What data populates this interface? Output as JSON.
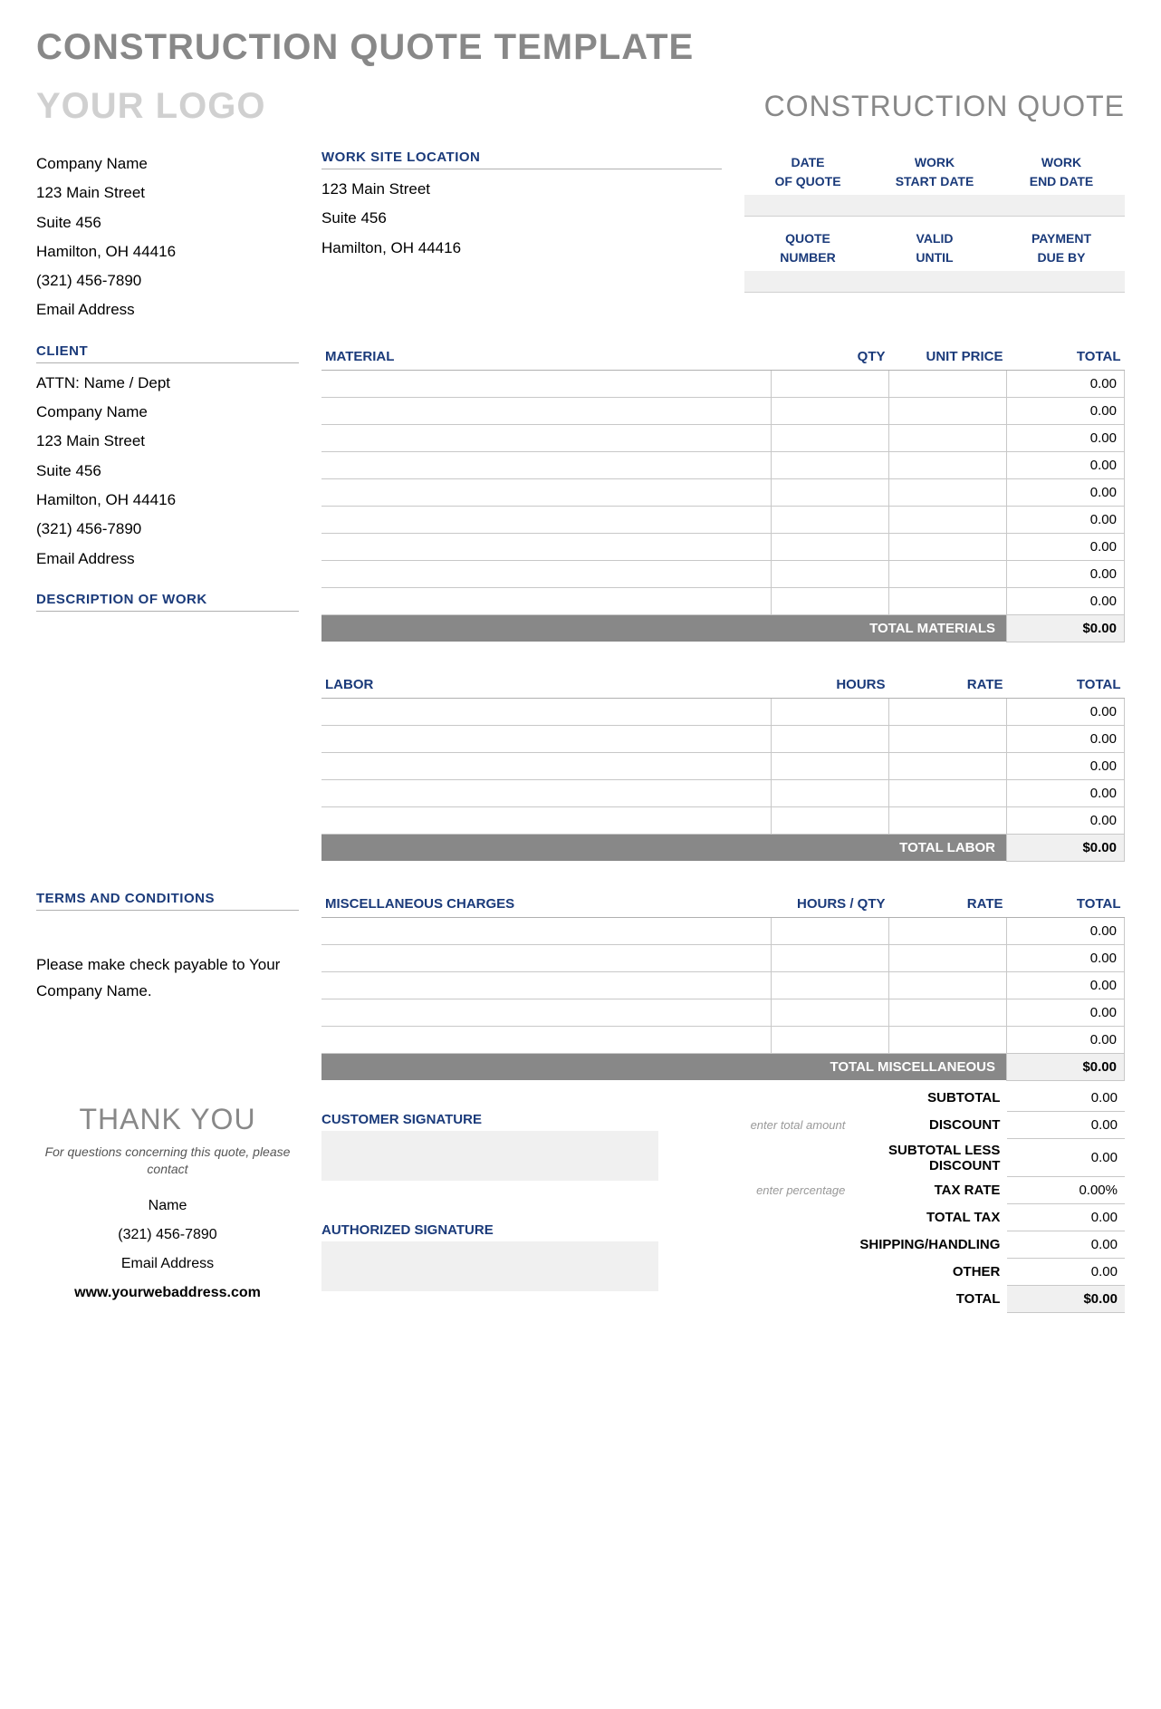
{
  "page_title": "CONSTRUCTION QUOTE TEMPLATE",
  "logo_text": "YOUR LOGO",
  "doc_type": "CONSTRUCTION QUOTE",
  "colors": {
    "heading_gray": "#888888",
    "logo_gray": "#d0d0d0",
    "label_navy": "#1a3a7a",
    "row_border": "#c8c8c8",
    "total_bar_bg": "#888888",
    "shade_bg": "#f0f0f0"
  },
  "company": {
    "name": "Company Name",
    "street": "123 Main Street",
    "suite": "Suite 456",
    "city": "Hamilton, OH  44416",
    "phone": "(321) 456-7890",
    "email": "Email Address"
  },
  "worksite": {
    "label": "WORK SITE LOCATION",
    "street": "123 Main Street",
    "suite": "Suite 456",
    "city": "Hamilton, OH  44416"
  },
  "meta": {
    "row1": [
      {
        "line1": "DATE",
        "line2": "OF QUOTE",
        "value": ""
      },
      {
        "line1": "WORK",
        "line2": "START DATE",
        "value": ""
      },
      {
        "line1": "WORK",
        "line2": "END DATE",
        "value": ""
      }
    ],
    "row2": [
      {
        "line1": "QUOTE",
        "line2": "NUMBER",
        "value": ""
      },
      {
        "line1": "VALID",
        "line2": "UNTIL",
        "value": ""
      },
      {
        "line1": "PAYMENT",
        "line2": "DUE BY",
        "value": ""
      }
    ]
  },
  "client": {
    "label": "CLIENT",
    "attn": "ATTN: Name / Dept",
    "name": "Company Name",
    "street": "123 Main Street",
    "suite": "Suite 456",
    "city": "Hamilton, OH  44416",
    "phone": "(321) 456-7890",
    "email": "Email Address"
  },
  "description_label": "DESCRIPTION OF WORK",
  "material": {
    "headers": [
      "MATERIAL",
      "QTY",
      "UNIT PRICE",
      "TOTAL"
    ],
    "rows": [
      {
        "desc": "",
        "qty": "",
        "price": "",
        "total": "0.00"
      },
      {
        "desc": "",
        "qty": "",
        "price": "",
        "total": "0.00"
      },
      {
        "desc": "",
        "qty": "",
        "price": "",
        "total": "0.00"
      },
      {
        "desc": "",
        "qty": "",
        "price": "",
        "total": "0.00"
      },
      {
        "desc": "",
        "qty": "",
        "price": "",
        "total": "0.00"
      },
      {
        "desc": "",
        "qty": "",
        "price": "",
        "total": "0.00"
      },
      {
        "desc": "",
        "qty": "",
        "price": "",
        "total": "0.00"
      },
      {
        "desc": "",
        "qty": "",
        "price": "",
        "total": "0.00"
      },
      {
        "desc": "",
        "qty": "",
        "price": "",
        "total": "0.00"
      }
    ],
    "total_label": "TOTAL MATERIALS",
    "total_value": "$0.00"
  },
  "labor": {
    "headers": [
      "LABOR",
      "HOURS",
      "RATE",
      "TOTAL"
    ],
    "rows": [
      {
        "desc": "",
        "qty": "",
        "price": "",
        "total": "0.00"
      },
      {
        "desc": "",
        "qty": "",
        "price": "",
        "total": "0.00"
      },
      {
        "desc": "",
        "qty": "",
        "price": "",
        "total": "0.00"
      },
      {
        "desc": "",
        "qty": "",
        "price": "",
        "total": "0.00"
      },
      {
        "desc": "",
        "qty": "",
        "price": "",
        "total": "0.00"
      }
    ],
    "total_label": "TOTAL LABOR",
    "total_value": "$0.00"
  },
  "terms": {
    "label": "TERMS AND CONDITIONS",
    "text": "Please make check payable to Your Company Name."
  },
  "misc": {
    "headers": [
      "MISCELLANEOUS CHARGES",
      "HOURS / QTY",
      "RATE",
      "TOTAL"
    ],
    "rows": [
      {
        "desc": "",
        "qty": "",
        "price": "",
        "total": "0.00"
      },
      {
        "desc": "",
        "qty": "",
        "price": "",
        "total": "0.00"
      },
      {
        "desc": "",
        "qty": "",
        "price": "",
        "total": "0.00"
      },
      {
        "desc": "",
        "qty": "",
        "price": "",
        "total": "0.00"
      },
      {
        "desc": "",
        "qty": "",
        "price": "",
        "total": "0.00"
      }
    ],
    "total_label": "TOTAL MISCELLANEOUS",
    "total_value": "$0.00"
  },
  "summary": {
    "subtotal": {
      "label": "SUBTOTAL",
      "hint": "",
      "value": "0.00"
    },
    "discount": {
      "label": "DISCOUNT",
      "hint": "enter total amount",
      "value": "0.00"
    },
    "subtotal_less": {
      "label": "SUBTOTAL LESS DISCOUNT",
      "hint": "",
      "value": "0.00"
    },
    "tax_rate": {
      "label": "TAX RATE",
      "hint": "enter percentage",
      "value": "0.00%"
    },
    "total_tax": {
      "label": "TOTAL TAX",
      "hint": "",
      "value": "0.00"
    },
    "shipping": {
      "label": "SHIPPING/HANDLING",
      "hint": "",
      "value": "0.00"
    },
    "other": {
      "label": "OTHER",
      "hint": "",
      "value": "0.00"
    },
    "total": {
      "label": "TOTAL",
      "hint": "",
      "value": "$0.00"
    }
  },
  "signatures": {
    "customer": "CUSTOMER SIGNATURE",
    "authorized": "AUTHORIZED SIGNATURE"
  },
  "footer": {
    "thank_you": "THANK YOU",
    "note": "For questions concerning this quote, please contact",
    "name": "Name",
    "phone": "(321) 456-7890",
    "email": "Email Address",
    "web": "www.yourwebaddress.com"
  }
}
